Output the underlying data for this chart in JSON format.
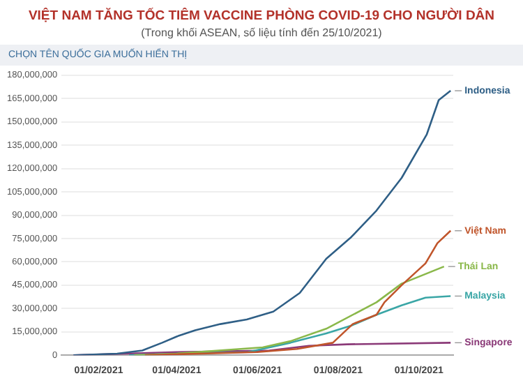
{
  "chart_data": {
    "type": "line",
    "title": "VIỆT NAM TĂNG TỐC TIÊM VACCINE PHÒNG COVID-19 CHO NGƯỜI DÂN",
    "subtitle": "(Trong khối ASEAN, số liệu tính đến 25/10/2021)",
    "annotations": [
      "CHỌN TÊN QUỐC GIA MUỐN HIỂN THỊ"
    ],
    "xlim": [
      "2021-01-04",
      "2021-10-27"
    ],
    "xticks": [
      {
        "value": "2021-02-01",
        "label": "01/02/2021"
      },
      {
        "value": "2021-04-01",
        "label": "01/04/2021"
      },
      {
        "value": "2021-06-01",
        "label": "01/06/2021"
      },
      {
        "value": "2021-08-01",
        "label": "01/08/2021"
      },
      {
        "value": "2021-10-01",
        "label": "01/10/2021"
      }
    ],
    "ylim": [
      0,
      180000000
    ],
    "yticks": [
      {
        "value": 0,
        "label": "0"
      },
      {
        "value": 15000000,
        "label": "15,000,000"
      },
      {
        "value": 30000000,
        "label": "30,000,000"
      },
      {
        "value": 45000000,
        "label": "45,000,000"
      },
      {
        "value": 60000000,
        "label": "60,000,000"
      },
      {
        "value": 75000000,
        "label": "75,000,000"
      },
      {
        "value": 90000000,
        "label": "90,000,000"
      },
      {
        "value": 105000000,
        "label": "105,000,000"
      },
      {
        "value": 120000000,
        "label": "120,000,000"
      },
      {
        "value": 135000000,
        "label": "135,000,000"
      },
      {
        "value": 150000000,
        "label": "150,000,000"
      },
      {
        "value": 165000000,
        "label": "165,000,000"
      },
      {
        "value": 180000000,
        "label": "180,000,000"
      }
    ],
    "grid": "y",
    "legend": false,
    "marker": "none",
    "line_style": "solid",
    "series": [
      {
        "name": "Indonesia",
        "color": "#2f5f86",
        "x": [
          "2021-01-13",
          "2021-02-15",
          "2021-03-06",
          "2021-03-21",
          "2021-04-01",
          "2021-04-15",
          "2021-05-04",
          "2021-05-24",
          "2021-06-13",
          "2021-07-03",
          "2021-07-23",
          "2021-08-11",
          "2021-08-30",
          "2021-09-18",
          "2021-10-07",
          "2021-10-16",
          "2021-10-25"
        ],
        "values": [
          0,
          1000000,
          3000000,
          8000000,
          12000000,
          16000000,
          20000000,
          23000000,
          28000000,
          40000000,
          62000000,
          76000000,
          93000000,
          114000000,
          142000000,
          164000000,
          170000000
        ]
      },
      {
        "name": "Việt Nam",
        "color": "#c0552b",
        "x": [
          "2021-03-08",
          "2021-06-01",
          "2021-07-01",
          "2021-07-28",
          "2021-08-12",
          "2021-08-30",
          "2021-09-05",
          "2021-09-18",
          "2021-10-06",
          "2021-10-15",
          "2021-10-25"
        ],
        "values": [
          0,
          2000000,
          4000000,
          8000000,
          20000000,
          26000000,
          34000000,
          45000000,
          59000000,
          72000000,
          80000000
        ]
      },
      {
        "name": "Thái Lan",
        "color": "#8ab84a",
        "x": [
          "2021-02-28",
          "2021-04-01",
          "2021-06-05",
          "2021-06-26",
          "2021-07-23",
          "2021-08-30",
          "2021-09-18",
          "2021-10-20"
        ],
        "values": [
          0,
          1000000,
          5000000,
          9000000,
          17000000,
          34000000,
          46000000,
          57000000
        ]
      },
      {
        "name": "Malaysia",
        "color": "#3aa6a6",
        "x": [
          "2021-02-24",
          "2021-04-01",
          "2021-05-25",
          "2021-06-26",
          "2021-07-23",
          "2021-08-11",
          "2021-08-30",
          "2021-09-18",
          "2021-10-06",
          "2021-10-25"
        ],
        "values": [
          0,
          1000000,
          2000000,
          8000000,
          14000000,
          19000000,
          26000000,
          32000000,
          37000000,
          38000000
        ]
      },
      {
        "name": "Singapore",
        "color": "#8b3a78",
        "x": [
          "2021-01-13",
          "2021-04-01",
          "2021-06-10",
          "2021-07-10",
          "2021-08-08",
          "2021-10-25"
        ],
        "values": [
          0,
          2000000,
          3000000,
          6000000,
          7000000,
          8000000
        ]
      }
    ]
  }
}
